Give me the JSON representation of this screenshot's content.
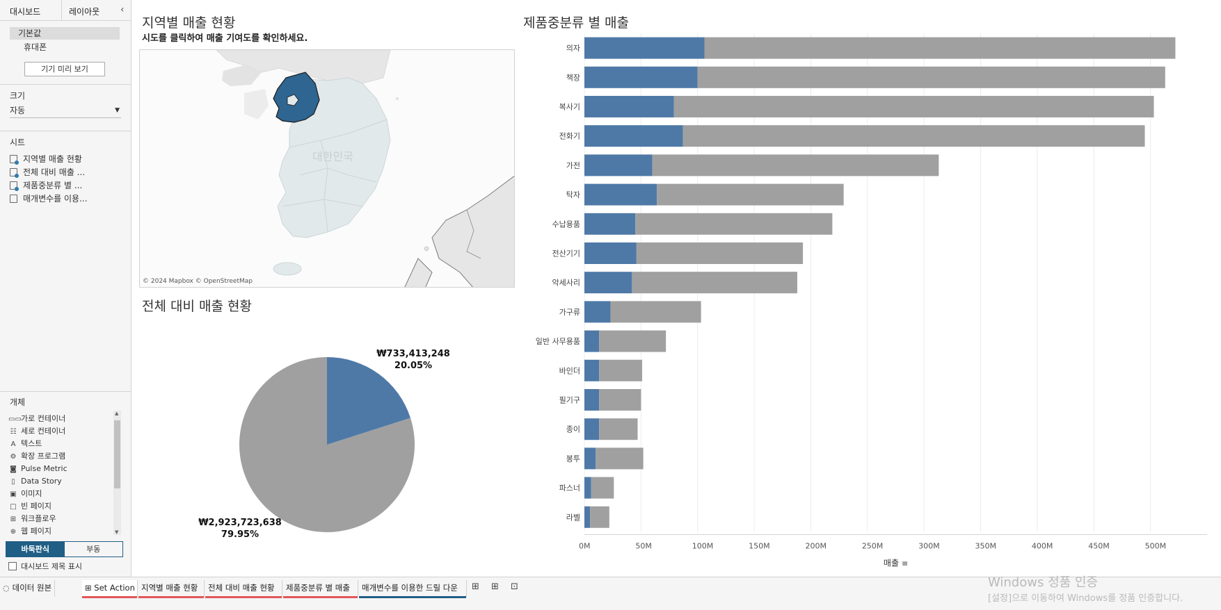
{
  "left_pane": {
    "tabs": [
      "대시보드",
      "레이아웃"
    ],
    "collapse_icon": "chevron-left-icon",
    "devices": [
      "기본값",
      "휴대폰"
    ],
    "device_preview": "기기 미리 보기",
    "size_section": "크기",
    "size_value": "자동",
    "sheets_section": "시트",
    "sheets": [
      "지역별 매출 현황",
      "전체 대비 매출 ...",
      "제품중분류 별 ...",
      "매개변수를 이용..."
    ],
    "objects_section": "개체",
    "objects": [
      {
        "label": "가로 컨테이너",
        "icon": "horizontal-container-icon"
      },
      {
        "label": "세로 컨테이너",
        "icon": "vertical-container-icon"
      },
      {
        "label": "텍스트",
        "icon": "text-icon"
      },
      {
        "label": "확장 프로그램",
        "icon": "extension-icon"
      },
      {
        "label": "Pulse Metric",
        "icon": "pulse-metric-icon"
      },
      {
        "label": "Data Story",
        "icon": "data-story-icon"
      },
      {
        "label": "이미지",
        "icon": "image-icon"
      },
      {
        "label": "빈 페이지",
        "icon": "blank-icon"
      },
      {
        "label": "워크플로우",
        "icon": "workflow-icon"
      },
      {
        "label": "웹 페이지",
        "icon": "web-page-icon"
      }
    ],
    "tiled": "바둑판식",
    "floating": "부동",
    "show_title": "대시보드 제목 표시"
  },
  "dashboard": {
    "map": {
      "title": "지역별 매출 현황",
      "subtitle": "시도를 클릭하여 매출 기여도를 확인하세요.",
      "credit": "© 2024 Mapbox © OpenStreetMap",
      "watermark": "대한민국",
      "highlight_color": "#2e6591"
    },
    "pie": {
      "title": "전체 대비 매출 현황",
      "highlight_label": "₩733,413,248",
      "highlight_pct": "20.05%",
      "rest_label": "₩2,923,723,638",
      "rest_pct": "79.95%",
      "colors": {
        "highlight": "#4e79a7",
        "rest": "#a0a0a0"
      }
    },
    "bar": {
      "title": "제품중분류 별 매출"
    }
  },
  "chart_data": {
    "type": "bar",
    "orientation": "horizontal",
    "stacked": true,
    "categories": [
      "의자",
      "책장",
      "복사기",
      "전화기",
      "가전",
      "탁자",
      "수납용품",
      "전산기기",
      "악세사리",
      "가구류",
      "일반 사무용품",
      "바인더",
      "필기구",
      "종이",
      "봉투",
      "파스너",
      "라벨"
    ],
    "series": [
      {
        "values": [
          106,
          100,
          79,
          87,
          60,
          64,
          45,
          46,
          42,
          23,
          13,
          13,
          13,
          13,
          10,
          6,
          5
        ],
        "color": "#4e79a7"
      },
      {
        "values": [
          416,
          413,
          424,
          408,
          253,
          165,
          174,
          147,
          146,
          80,
          59,
          38,
          37,
          34,
          42,
          20,
          17
        ],
        "color": "#a0a0a0"
      }
    ],
    "xlabel": "매출",
    "xticks": [
      "0M",
      "50M",
      "100M",
      "150M",
      "200M",
      "250M",
      "300M",
      "350M",
      "400M",
      "450M",
      "500M"
    ],
    "xlim": [
      0,
      550
    ],
    "grid": true
  },
  "bottom_bar": {
    "data_source": "데이터 원본",
    "tabs": [
      {
        "label": "Set Action",
        "current": true,
        "underline": "#e15759"
      },
      {
        "label": "지역별 매출 현황",
        "current": false,
        "underline": "#e15759"
      },
      {
        "label": "전체 대비 매출 현황",
        "current": false,
        "underline": "#e15759"
      },
      {
        "label": "제품중분류 별 매출",
        "current": false,
        "underline": "#e15759"
      },
      {
        "label": "매개변수를 이용한 드릴 다운",
        "current": false,
        "underline": "#1f5e85"
      }
    ],
    "windows_line1": "Windows 정품 인증",
    "windows_line2": "[설정]으로 이동하여 Windows를 정품 인증합니다."
  }
}
